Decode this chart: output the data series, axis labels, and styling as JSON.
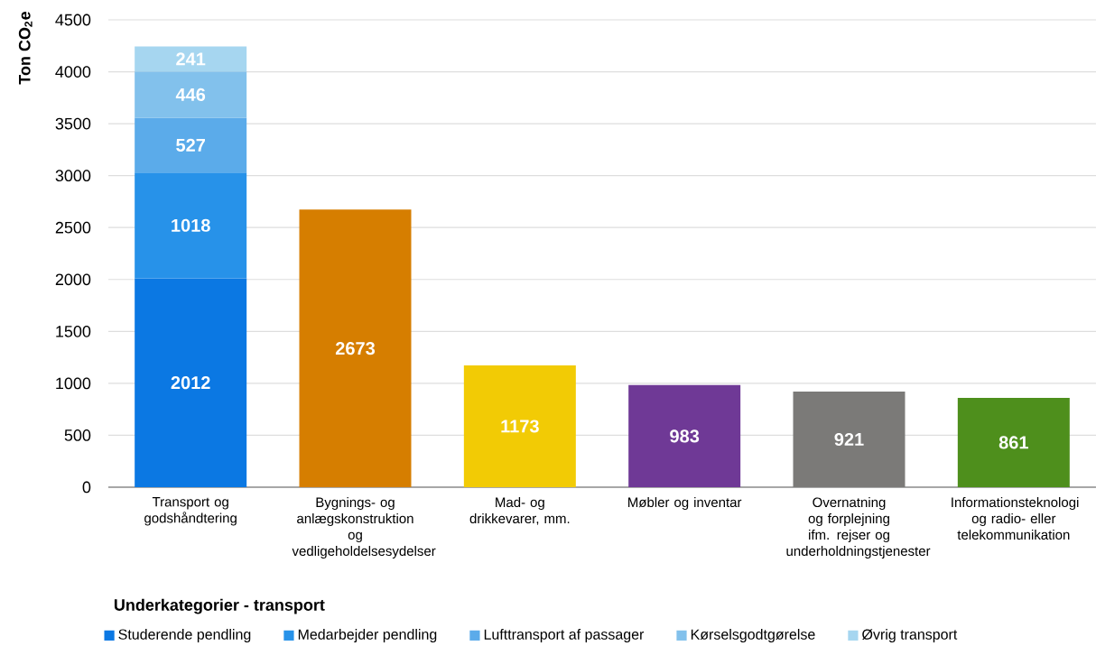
{
  "chart_data": {
    "type": "bar",
    "stacked": true,
    "ylabel": "Ton CO$_{2}$e",
    "legend_title": "Underkategorier - transport",
    "categories": [
      "Transport og godshåndtering",
      "Bygnings- og anlægskonstruktion og vedligeholdelsesydelser",
      "Mad- og drikkevarer, mm.",
      "Møbler og inventar",
      "Overnatning og forplejning ifm. rejser og underholdningstjenester",
      "Informationsteknologi og radio- eller telekommunikation"
    ],
    "series": [
      {
        "name": "Studerende pendling",
        "color": "#0b78e3",
        "values": [
          2012,
          null,
          null,
          null,
          null,
          null
        ]
      },
      {
        "name": "Medarbejder pendling",
        "color": "#2792e9",
        "values": [
          1018,
          null,
          null,
          null,
          null,
          null
        ]
      },
      {
        "name": "Lufttransport af passager",
        "color": "#5babea",
        "values": [
          527,
          null,
          null,
          null,
          null,
          null
        ]
      },
      {
        "name": "Kørselsgodtgørelse",
        "color": "#82c1ec",
        "values": [
          446,
          null,
          null,
          null,
          null,
          null
        ]
      },
      {
        "name": "Øvrig transport",
        "color": "#a6d6f0",
        "values": [
          241,
          null,
          null,
          null,
          null,
          null
        ]
      },
      {
        "colors": [
          "#d67e00",
          "#d67e00",
          "#f2cb05",
          "#6f3996",
          "#7b7a78",
          "#4e8f1c"
        ],
        "values": [
          null,
          2673,
          1173,
          983,
          921,
          861
        ]
      }
    ],
    "ylim": [
      0,
      4500
    ],
    "yticks": [
      0,
      500,
      1000,
      1500,
      2000,
      2500,
      3000,
      3500,
      4000,
      4500
    ],
    "grid": "y",
    "legend": "bottom",
    "data_labels": true
  }
}
